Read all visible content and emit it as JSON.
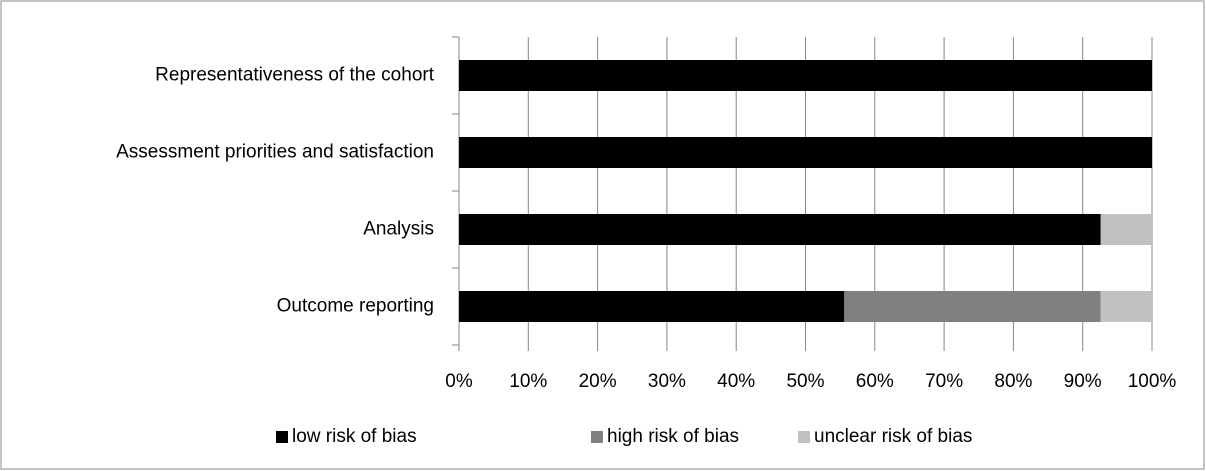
{
  "chart_data": {
    "type": "stacked-bar-horizontal",
    "categories": [
      "Representativeness of the cohort",
      "Assessment priorities and satisfaction",
      "Analysis",
      "Outcome reporting"
    ],
    "series": [
      {
        "name": "low risk of bias",
        "color": "#000000",
        "values": [
          100,
          100,
          92.6,
          55.6
        ]
      },
      {
        "name": "high risk of bias",
        "color": "#808080",
        "values": [
          0,
          0,
          0,
          37
        ]
      },
      {
        "name": "unclear risk of bias",
        "color": "#c0c0c0",
        "values": [
          0,
          0,
          7.4,
          7.4
        ]
      }
    ],
    "xlim": [
      0,
      100
    ],
    "xticks": [
      {
        "value": 0,
        "label": "0%"
      },
      {
        "value": 10,
        "label": "10%"
      },
      {
        "value": 20,
        "label": "20%"
      },
      {
        "value": 30,
        "label": "30%"
      },
      {
        "value": 40,
        "label": "40%"
      },
      {
        "value": 50,
        "label": "50%"
      },
      {
        "value": 60,
        "label": "60%"
      },
      {
        "value": 70,
        "label": "70%"
      },
      {
        "value": 80,
        "label": "80%"
      },
      {
        "value": 90,
        "label": "90%"
      },
      {
        "value": 100,
        "label": "100%"
      }
    ],
    "grid": true,
    "legend": "bottom"
  }
}
